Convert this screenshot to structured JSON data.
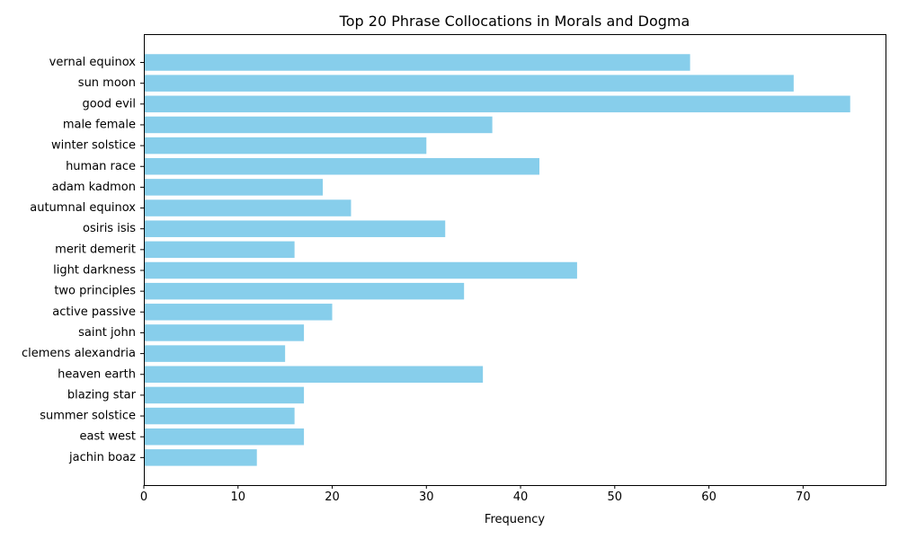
{
  "chart_data": {
    "type": "bar",
    "orientation": "horizontal",
    "title": "Top 20 Phrase Collocations in Morals and Dogma",
    "xlabel": "Frequency",
    "ylabel": "",
    "xlim": [
      0,
      78.75
    ],
    "xticks": [
      0,
      10,
      20,
      30,
      40,
      50,
      60,
      70
    ],
    "grid": false,
    "bar_color": "#87ceeb",
    "categories": [
      "vernal equinox",
      "sun moon",
      "good evil",
      "male female",
      "winter solstice",
      "human race",
      "adam kadmon",
      "autumnal equinox",
      "osiris isis",
      "merit demerit",
      "light darkness",
      "two principles",
      "active passive",
      "saint john",
      "clemens alexandria",
      "heaven earth",
      "blazing star",
      "summer solstice",
      "east west",
      "jachin boaz"
    ],
    "values": [
      58,
      69,
      75,
      37,
      30,
      42,
      19,
      22,
      32,
      16,
      46,
      34,
      20,
      17,
      15,
      36,
      17,
      16,
      17,
      12
    ]
  }
}
